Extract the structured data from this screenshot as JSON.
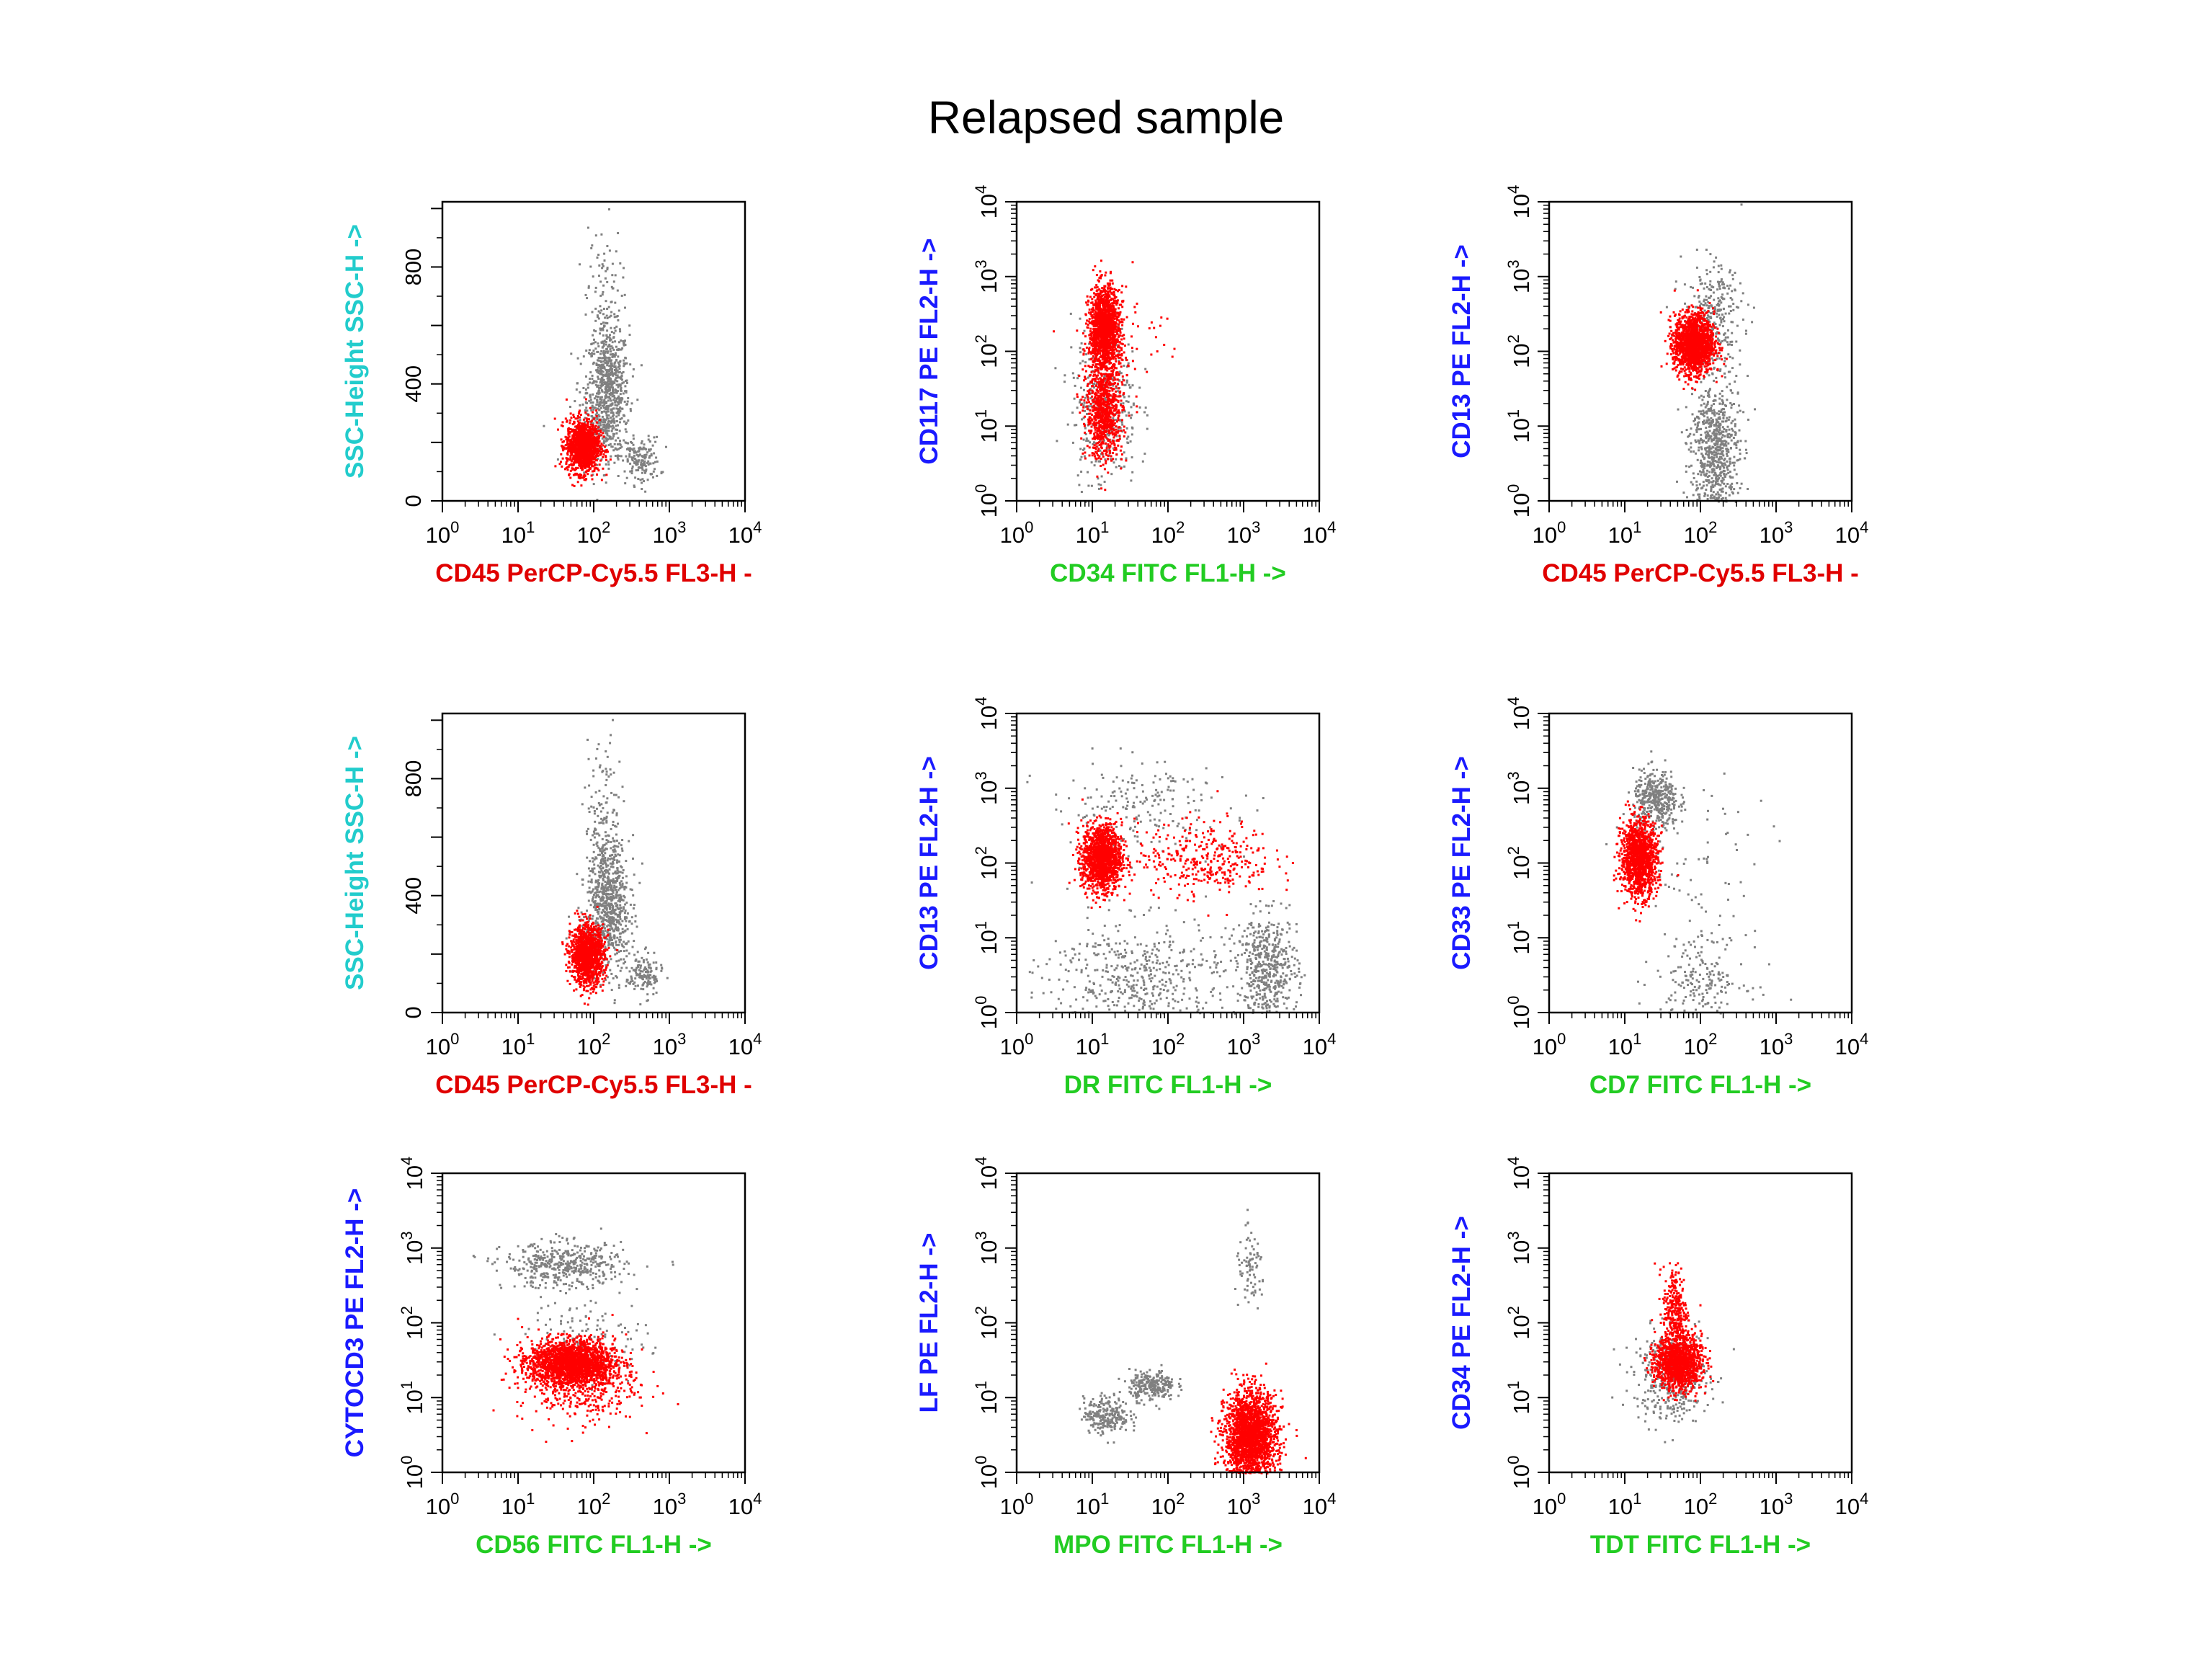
{
  "title": "Relapsed sample",
  "colors": {
    "gated": "#ff0000",
    "ungated": "#808080",
    "label_red": "#e00000",
    "label_green": "#22cc22",
    "label_blue": "#1a1aff",
    "label_cyan": "#22cccc"
  },
  "chart_data": [
    {
      "type": "scatter",
      "id": "p1",
      "xlabel": "CD45 PerCP-Cy5.5 FL3-H -",
      "xlabel_color": "red",
      "xscale": "log",
      "xlim": [
        1,
        10000
      ],
      "ylabel": "SSC-Height SSC-H ->",
      "ylabel_color": "cyan",
      "yscale": "linear",
      "ylim": [
        0,
        1023
      ],
      "yticks": [
        "0",
        "400",
        "800"
      ],
      "series": [
        {
          "color": "ungated",
          "clusters": [
            {
              "x": 150,
              "y": 380,
              "sx": 0.14,
              "sy": 110,
              "n": 700
            },
            {
              "x": 130,
              "y": 650,
              "sx": 0.12,
              "sy": 150,
              "n": 130
            },
            {
              "x": 400,
              "y": 140,
              "sx": 0.13,
              "sy": 40,
              "n": 160
            },
            {
              "x": 120,
              "y": 250,
              "sx": 0.2,
              "sy": 60,
              "n": 100
            }
          ]
        },
        {
          "color": "gated",
          "clusters": [
            {
              "x": 70,
              "y": 190,
              "sx": 0.11,
              "sy": 45,
              "n": 1300
            }
          ]
        }
      ]
    },
    {
      "type": "scatter",
      "id": "p2",
      "xlabel": "CD34 FITC FL1-H ->",
      "xlabel_color": "green",
      "xscale": "log",
      "xlim": [
        1,
        10000
      ],
      "ylabel": "CD117 PE FL2-H ->",
      "ylabel_color": "blue",
      "yscale": "log",
      "ylim": [
        1,
        10000
      ],
      "series": [
        {
          "color": "ungated",
          "clusters": [
            {
              "x": 14,
              "y": 20,
              "sx": 0.22,
              "sy": 0.55,
              "n": 350
            }
          ]
        },
        {
          "color": "gated",
          "clusters": [
            {
              "x": 14,
              "y": 200,
              "sx": 0.1,
              "sy": 0.28,
              "n": 1500
            },
            {
              "x": 14,
              "y": 15,
              "sx": 0.12,
              "sy": 0.3,
              "n": 800
            },
            {
              "x": 25,
              "y": 150,
              "sx": 0.3,
              "sy": 0.4,
              "n": 80
            }
          ]
        }
      ]
    },
    {
      "type": "scatter",
      "id": "p3",
      "xlabel": "CD45 PerCP-Cy5.5 FL3-H -",
      "xlabel_color": "red",
      "xscale": "log",
      "xlim": [
        1,
        10000
      ],
      "ylabel": "CD13 PE FL2-H ->",
      "ylabel_color": "blue",
      "yscale": "log",
      "ylim": [
        1,
        10000
      ],
      "series": [
        {
          "color": "ungated",
          "clusters": [
            {
              "x": 150,
              "y": 5,
              "sx": 0.16,
              "sy": 0.45,
              "n": 700
            },
            {
              "x": 140,
              "y": 300,
              "sx": 0.2,
              "sy": 0.35,
              "n": 300
            }
          ]
        },
        {
          "color": "gated",
          "clusters": [
            {
              "x": 80,
              "y": 130,
              "sx": 0.13,
              "sy": 0.2,
              "n": 1600
            }
          ]
        }
      ]
    },
    {
      "type": "scatter",
      "id": "p4",
      "xlabel": "CD45 PerCP-Cy5.5 FL3-H -",
      "xlabel_color": "red",
      "xscale": "log",
      "xlim": [
        1,
        10000
      ],
      "ylabel": "SSC-Height SSC-H ->",
      "ylabel_color": "cyan",
      "yscale": "linear",
      "ylim": [
        0,
        1023
      ],
      "yticks": [
        "0",
        "400",
        "800"
      ],
      "series": [
        {
          "color": "ungated",
          "clusters": [
            {
              "x": 150,
              "y": 380,
              "sx": 0.14,
              "sy": 110,
              "n": 700
            },
            {
              "x": 130,
              "y": 650,
              "sx": 0.12,
              "sy": 150,
              "n": 130
            },
            {
              "x": 450,
              "y": 130,
              "sx": 0.12,
              "sy": 35,
              "n": 140
            },
            {
              "x": 120,
              "y": 250,
              "sx": 0.2,
              "sy": 60,
              "n": 100
            }
          ]
        },
        {
          "color": "gated",
          "clusters": [
            {
              "x": 80,
              "y": 200,
              "sx": 0.11,
              "sy": 50,
              "n": 1300
            }
          ]
        }
      ]
    },
    {
      "type": "scatter",
      "id": "p5",
      "xlabel": "DR FITC FL1-H ->",
      "xlabel_color": "green",
      "xscale": "log",
      "xlim": [
        1,
        10000
      ],
      "ylabel": "CD13 PE FL2-H ->",
      "ylabel_color": "blue",
      "yscale": "log",
      "ylim": [
        1,
        10000
      ],
      "series": [
        {
          "color": "ungated",
          "clusters": [
            {
              "x": 2000,
              "y": 4,
              "sx": 0.2,
              "sy": 0.35,
              "n": 500
            },
            {
              "x": 40,
              "y": 3,
              "sx": 0.6,
              "sy": 0.4,
              "n": 500
            },
            {
              "x": 40,
              "y": 600,
              "sx": 0.6,
              "sy": 0.3,
              "n": 200
            }
          ]
        },
        {
          "color": "gated",
          "clusters": [
            {
              "x": 13,
              "y": 120,
              "sx": 0.13,
              "sy": 0.22,
              "n": 1400
            },
            {
              "x": 300,
              "y": 120,
              "sx": 0.45,
              "sy": 0.25,
              "n": 350
            }
          ]
        }
      ]
    },
    {
      "type": "scatter",
      "id": "p6",
      "xlabel": "CD7 FITC FL1-H ->",
      "xlabel_color": "green",
      "xscale": "log",
      "xlim": [
        1,
        10000
      ],
      "ylabel": "CD33 PE FL2-H ->",
      "ylabel_color": "blue",
      "yscale": "log",
      "ylim": [
        1,
        10000
      ],
      "series": [
        {
          "color": "ungated",
          "clusters": [
            {
              "x": 25,
              "y": 700,
              "sx": 0.15,
              "sy": 0.2,
              "n": 400
            },
            {
              "x": 100,
              "y": 3,
              "sx": 0.3,
              "sy": 0.3,
              "n": 200
            },
            {
              "x": 80,
              "y": 100,
              "sx": 0.5,
              "sy": 0.6,
              "n": 70
            }
          ]
        },
        {
          "color": "gated",
          "clusters": [
            {
              "x": 15,
              "y": 120,
              "sx": 0.12,
              "sy": 0.25,
              "n": 1300
            }
          ]
        }
      ]
    },
    {
      "type": "scatter",
      "id": "p7",
      "xlabel": "CD56 FITC FL1-H ->",
      "xlabel_color": "green",
      "xscale": "log",
      "xlim": [
        1,
        10000
      ],
      "ylabel": "CYTOCD3 PE FL2-H ->",
      "ylabel_color": "blue",
      "yscale": "log",
      "ylim": [
        1,
        10000
      ],
      "series": [
        {
          "color": "ungated",
          "clusters": [
            {
              "x": 40,
              "y": 600,
              "sx": 0.4,
              "sy": 0.15,
              "n": 450
            },
            {
              "x": 80,
              "y": 60,
              "sx": 0.4,
              "sy": 0.3,
              "n": 150
            }
          ]
        },
        {
          "color": "gated",
          "clusters": [
            {
              "x": 50,
              "y": 30,
              "sx": 0.28,
              "sy": 0.15,
              "n": 2000
            },
            {
              "x": 60,
              "y": 15,
              "sx": 0.4,
              "sy": 0.25,
              "n": 400
            }
          ]
        }
      ]
    },
    {
      "type": "scatter",
      "id": "p8",
      "xlabel": "MPO FITC FL1-H ->",
      "xlabel_color": "green",
      "xscale": "log",
      "xlim": [
        1,
        10000
      ],
      "ylabel": "LF PE FL2-H ->",
      "ylabel_color": "blue",
      "yscale": "log",
      "ylim": [
        1,
        10000
      ],
      "series": [
        {
          "color": "ungated",
          "clusters": [
            {
              "x": 15,
              "y": 6,
              "sx": 0.15,
              "sy": 0.12,
              "n": 250
            },
            {
              "x": 60,
              "y": 15,
              "sx": 0.15,
              "sy": 0.1,
              "n": 250
            },
            {
              "x": 1200,
              "y": 500,
              "sx": 0.1,
              "sy": 0.25,
              "n": 80
            }
          ]
        },
        {
          "color": "gated",
          "clusters": [
            {
              "x": 1200,
              "y": 3,
              "sx": 0.17,
              "sy": 0.3,
              "n": 2200
            }
          ]
        }
      ]
    },
    {
      "type": "scatter",
      "id": "p9",
      "xlabel": "TDT FITC FL1-H ->",
      "xlabel_color": "green",
      "xscale": "log",
      "xlim": [
        1,
        10000
      ],
      "ylabel": "CD34 PE FL2-H ->",
      "ylabel_color": "blue",
      "yscale": "log",
      "ylim": [
        1,
        10000
      ],
      "series": [
        {
          "color": "ungated",
          "clusters": [
            {
              "x": 40,
              "y": 20,
              "sx": 0.25,
              "sy": 0.3,
              "n": 400
            }
          ]
        },
        {
          "color": "gated",
          "clusters": [
            {
              "x": 50,
              "y": 30,
              "sx": 0.15,
              "sy": 0.18,
              "n": 1300
            },
            {
              "x": 45,
              "y": 150,
              "sx": 0.08,
              "sy": 0.3,
              "n": 300
            }
          ]
        }
      ]
    }
  ]
}
